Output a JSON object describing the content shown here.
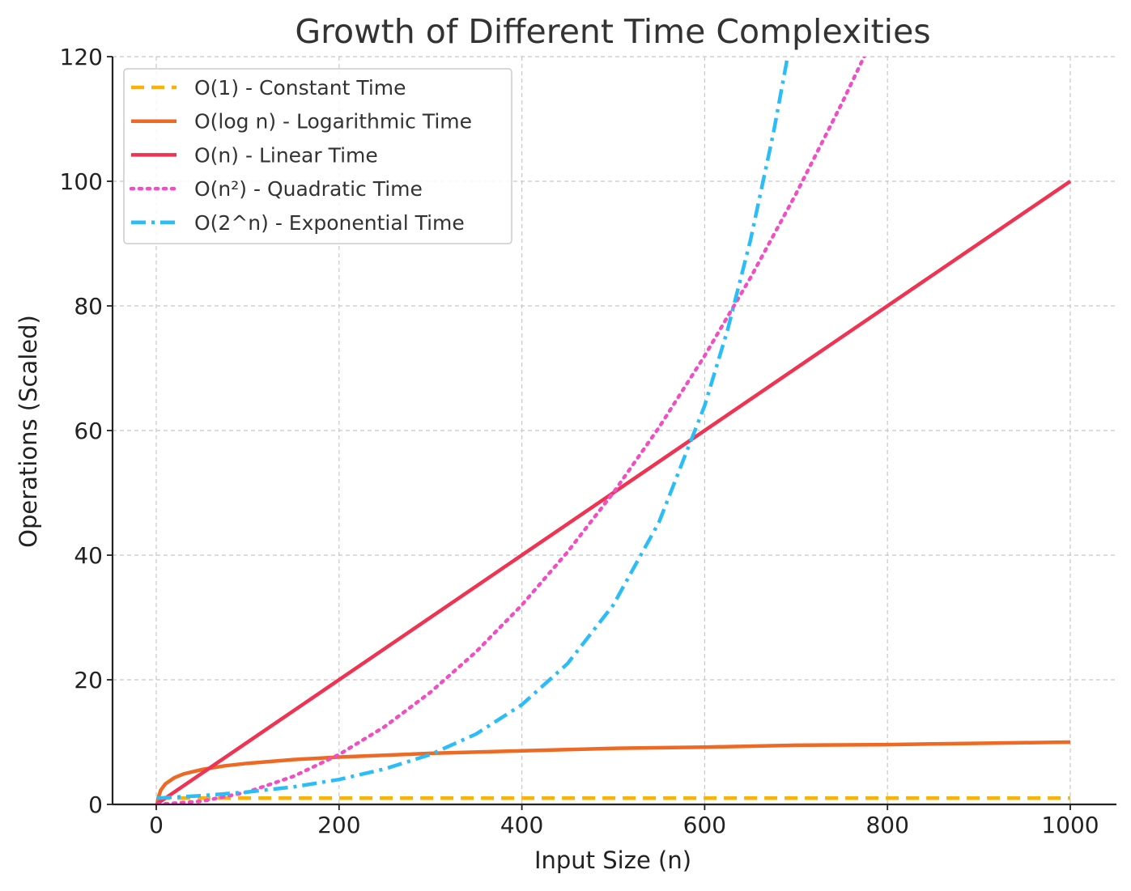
{
  "chart_data": {
    "type": "line",
    "title": "Growth of Different Time Complexities",
    "xlabel": "Input Size (n)",
    "ylabel": "Operations (Scaled)",
    "xlim": [
      -25,
      1050
    ],
    "ylim": [
      0,
      120
    ],
    "x_ticks": [
      0,
      200,
      400,
      600,
      800,
      1000
    ],
    "y_ticks": [
      0,
      20,
      40,
      60,
      80,
      100,
      120
    ],
    "grid": true,
    "legend_position": "top-left",
    "series": [
      {
        "name": "O(1) - Constant Time",
        "color": "#f9b208",
        "dash": "dashed",
        "x": [
          1,
          1000
        ],
        "y": [
          1,
          1
        ]
      },
      {
        "name": "O(log n) - Logarithmic Time",
        "color": "#ee6a24",
        "dash": "solid",
        "x": [
          1,
          2,
          5,
          10,
          20,
          30,
          50,
          75,
          100,
          150,
          200,
          300,
          400,
          500,
          600,
          700,
          800,
          900,
          1000
        ],
        "y": [
          0,
          1,
          2.3,
          3.3,
          4.3,
          4.9,
          5.6,
          6.2,
          6.6,
          7.2,
          7.6,
          8.2,
          8.6,
          9.0,
          9.2,
          9.5,
          9.6,
          9.8,
          10.0
        ]
      },
      {
        "name": "O(n) - Linear Time",
        "color": "#ef3352",
        "dash": "solid",
        "x": [
          1,
          1000
        ],
        "y": [
          0.1,
          100
        ]
      },
      {
        "name": "O(n²) - Quadratic Time",
        "color": "#f04fc3",
        "dash": "dotted",
        "x": [
          1,
          50,
          100,
          150,
          200,
          250,
          300,
          350,
          400,
          450,
          500,
          550,
          600,
          650,
          700,
          750,
          780
        ],
        "y": [
          0,
          0.5,
          2,
          4.5,
          8,
          12.5,
          18,
          24.5,
          32,
          40.5,
          50,
          60.5,
          72,
          84.5,
          98,
          112.5,
          121.7
        ]
      },
      {
        "name": "O(2^n) - Exponential Time",
        "color": "#2bbdf8",
        "dash": "dashdot",
        "x": [
          1,
          50,
          100,
          150,
          200,
          250,
          300,
          350,
          400,
          450,
          500,
          550,
          600,
          625,
          650,
          675,
          692
        ],
        "y": [
          1,
          1.4,
          2,
          2.8,
          4,
          5.7,
          8,
          11.3,
          16,
          22.6,
          32,
          45.3,
          64,
          76.1,
          90.5,
          107.6,
          121
        ]
      }
    ]
  }
}
